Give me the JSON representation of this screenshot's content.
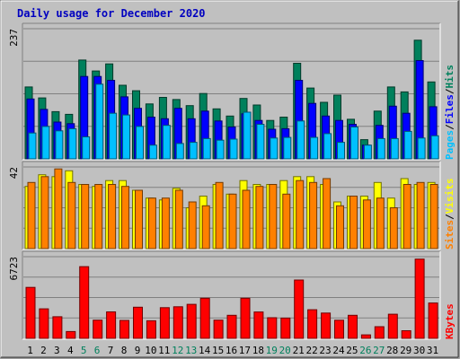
{
  "title": "Daily usage for December 2020",
  "colors": {
    "background": "#c0c0c0",
    "title": "#0000c0",
    "hits": "#00805c",
    "files": "#0000ff",
    "pages": "#00c0ff",
    "sites": "#ff8000",
    "visits": "#ffff00",
    "kbytes": "#ff0000",
    "weekend_label": "#00805c",
    "weekday_label": "#000000"
  },
  "chart_data": [
    {
      "type": "bar",
      "panel": "hits-files-pages",
      "y_max_label": "237",
      "ylim": [
        0,
        237
      ],
      "legend": {
        "pages": "Pages",
        "sep1": "/",
        "files": "Files",
        "sep2": "/",
        "hits": "Hits"
      },
      "categories": [
        "1",
        "2",
        "3",
        "4",
        "5",
        "6",
        "7",
        "8",
        "9",
        "10",
        "11",
        "12",
        "13",
        "14",
        "15",
        "16",
        "17",
        "18",
        "19",
        "20",
        "21",
        "22",
        "23",
        "24",
        "25",
        "26",
        "27",
        "28",
        "29",
        "30",
        "31"
      ],
      "weekend": [
        "5",
        "6",
        "12",
        "13",
        "19",
        "20",
        "26",
        "27"
      ],
      "series": [
        {
          "name": "Hits",
          "values": [
            131,
            111,
            86,
            81,
            180,
            160,
            173,
            134,
            124,
            100,
            112,
            108,
            97,
            119,
            91,
            78,
            110,
            98,
            70,
            76,
            174,
            129,
            103,
            116,
            72,
            35,
            87,
            131,
            122,
            216,
            140
          ]
        },
        {
          "name": "Files",
          "values": [
            109,
            90,
            67,
            64,
            150,
            150,
            143,
            113,
            92,
            76,
            73,
            92,
            73,
            87,
            69,
            58,
            82,
            70,
            54,
            55,
            143,
            101,
            78,
            70,
            63,
            25,
            61,
            96,
            83,
            179,
            95
          ]
        },
        {
          "name": "Pages",
          "values": [
            47,
            59,
            51,
            55,
            40,
            136,
            83,
            80,
            59,
            25,
            61,
            28,
            30,
            37,
            34,
            36,
            85,
            63,
            38,
            39,
            69,
            39,
            46,
            30,
            58,
            25,
            37,
            37,
            50,
            38,
            42
          ]
        }
      ]
    },
    {
      "type": "bar",
      "panel": "sites-visits",
      "y_max_label": "42",
      "ylim": [
        0,
        42
      ],
      "legend": {
        "sites": "Sites",
        "sep": "/",
        "visits": "Visits"
      },
      "series": [
        {
          "name": "Sites",
          "values": [
            34,
            37,
            41,
            34,
            33,
            33,
            33,
            32,
            30,
            26,
            26,
            30,
            24,
            22,
            34,
            28,
            30,
            32,
            33,
            28,
            35,
            34,
            36,
            22,
            27,
            25,
            26,
            21,
            33,
            34,
            33
          ]
        },
        {
          "name": "Visits",
          "values": [
            32,
            38,
            37,
            40,
            33,
            32,
            35,
            35,
            30,
            26,
            25,
            31,
            21,
            27,
            33,
            28,
            35,
            33,
            33,
            35,
            37,
            37,
            33,
            24,
            27,
            27,
            34,
            26,
            36,
            33,
            34
          ]
        }
      ]
    },
    {
      "type": "bar",
      "panel": "kbytes",
      "y_max_label": "6723",
      "ylim": [
        0,
        6723
      ],
      "legend": {
        "kbytes": "KBytes"
      },
      "series": [
        {
          "name": "KBytes",
          "values": [
            4200,
            2430,
            1780,
            560,
            5900,
            1500,
            2180,
            1480,
            2560,
            1450,
            2530,
            2600,
            2800,
            3300,
            1500,
            1900,
            3300,
            2170,
            1700,
            1670,
            4800,
            2360,
            2080,
            1490,
            1900,
            290,
            960,
            1990,
            630,
            6523,
            2910
          ]
        }
      ]
    }
  ]
}
